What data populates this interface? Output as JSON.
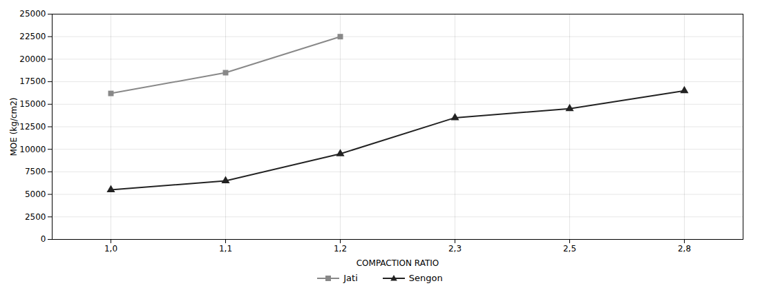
{
  "chart_data": {
    "type": "line",
    "categories": [
      "1,0",
      "1,1",
      "1,2",
      "2,3",
      "2,5",
      "2,8"
    ],
    "series": [
      {
        "name": "Jati",
        "color": "#888888",
        "marker": "square",
        "values": [
          16200,
          18500,
          22500,
          null,
          null,
          null
        ]
      },
      {
        "name": "Sengon",
        "color": "#222222",
        "marker": "triangle",
        "values": [
          5500,
          6500,
          9500,
          13500,
          14500,
          16500
        ]
      }
    ],
    "xlabel": "COMPACTION RATIO",
    "ylabel": "MOE (kg/cm2)",
    "ylim": [
      0,
      25000
    ],
    "yticks": [
      0,
      2500,
      5000,
      7500,
      10000,
      12500,
      15000,
      17500,
      20000,
      22500,
      25000
    ],
    "grid": true,
    "legend": "bottom"
  }
}
